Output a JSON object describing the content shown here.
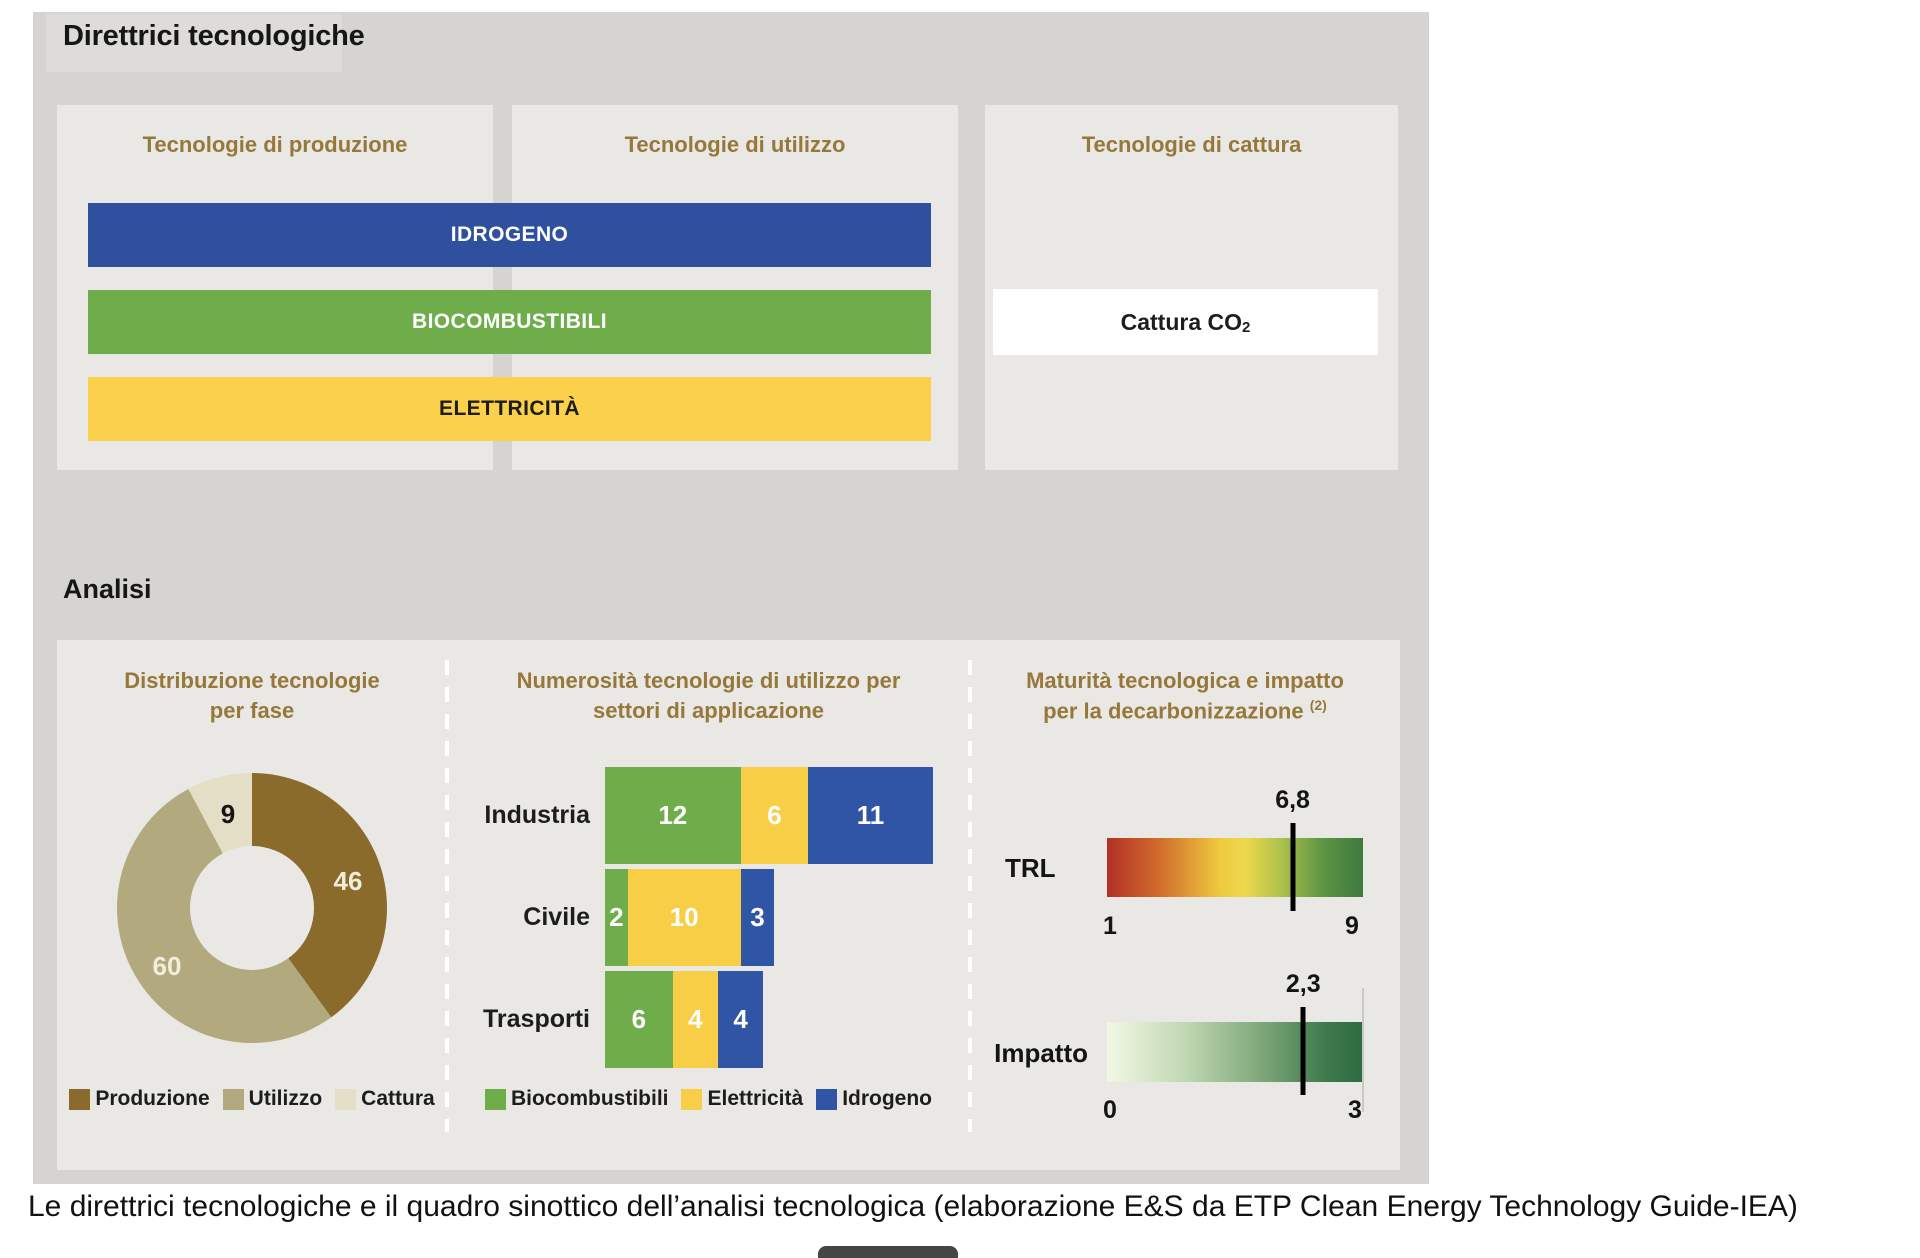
{
  "direttrici": {
    "title": "Direttrici tecnologiche",
    "col_produzione": "Tecnologie di produzione",
    "col_utilizzo": "Tecnologie di utilizzo",
    "col_cattura": "Tecnologie di cattura",
    "vettori": [
      {
        "label": "IDROGENO",
        "color": "#2F509E",
        "text_color": "#FFFFFF"
      },
      {
        "label": "BIOCOMBUSTIBILI",
        "color": "#6FAD4B",
        "text_color": "#FFFFFF"
      },
      {
        "label": "ELETTRICITÀ",
        "color": "#FBD14B",
        "text_color": "#1D1D1B"
      }
    ],
    "cattura_box": {
      "text": "Cattura CO",
      "subscript": "2"
    }
  },
  "analisi": {
    "title": "Analisi",
    "donut_title_line1": "Distribuzione tecnologie",
    "donut_title_line2": "per fase",
    "bar_title_line1": "Numerosità tecnologie di utilizzo per",
    "bar_title_line2": "settori di applicazione",
    "scale_title_line1": "Maturità tecnologica e impatto",
    "scale_title_line2": "per la decarbonizzazione",
    "scale_title_sup": "(2)"
  },
  "chart_data": [
    {
      "type": "pie",
      "donut": true,
      "title": "Distribuzione tecnologie per fase",
      "labels": [
        "Produzione",
        "Utilizzo",
        "Cattura"
      ],
      "values": [
        46,
        60,
        9
      ],
      "colors": [
        "#8A6B2B",
        "#B3A97E",
        "#E3DEC6"
      ],
      "start_angle_deg": 0,
      "direction": "clockwise",
      "legend_position": "bottom"
    },
    {
      "type": "bar",
      "orientation": "horizontal",
      "stacked": true,
      "title": "Numerosità tecnologie di utilizzo per settori di applicazione",
      "categories": [
        "Industria",
        "Civile",
        "Trasporti"
      ],
      "series": [
        {
          "name": "Biocombustibili",
          "color": "#6FAD4B",
          "values": [
            12,
            2,
            6
          ]
        },
        {
          "name": "Elettricità",
          "color": "#F8CE46",
          "values": [
            6,
            10,
            4
          ]
        },
        {
          "name": "Idrogeno",
          "color": "#3055A4",
          "values": [
            11,
            3,
            4
          ]
        }
      ],
      "value_labels": "inside",
      "legend_position": "bottom"
    },
    {
      "type": "heatmap",
      "subtype": "gradient-scales",
      "title": "Maturità tecnologica e impatto per la decarbonizzazione (2)",
      "scales": [
        {
          "label": "TRL",
          "min": 1,
          "max": 9,
          "value": "6,8",
          "value_numeric": 6.8,
          "gradient_stops": [
            "#B23127 0%",
            "#D06A2C 20%",
            "#EFC93F 44%",
            "#EDD84C 54%",
            "#AEC24D 68%",
            "#5E9443 84%",
            "#3E7A40 100%"
          ]
        },
        {
          "label": "Impatto",
          "min": 0,
          "max": 3,
          "value": "2,3",
          "value_numeric": 2.3,
          "gradient_stops": [
            "#F2F7E4 0%",
            "#C2D8B4 30%",
            "#7FA87A 60%",
            "#3F7A4E 85%",
            "#2E6B40 100%"
          ]
        }
      ]
    }
  ],
  "caption": "Le direttrici tecnologiche e il quadro sinottico dell’analisi tecnologica (elaborazione E&S da ETP Clean Energy Technology Guide-IEA)"
}
